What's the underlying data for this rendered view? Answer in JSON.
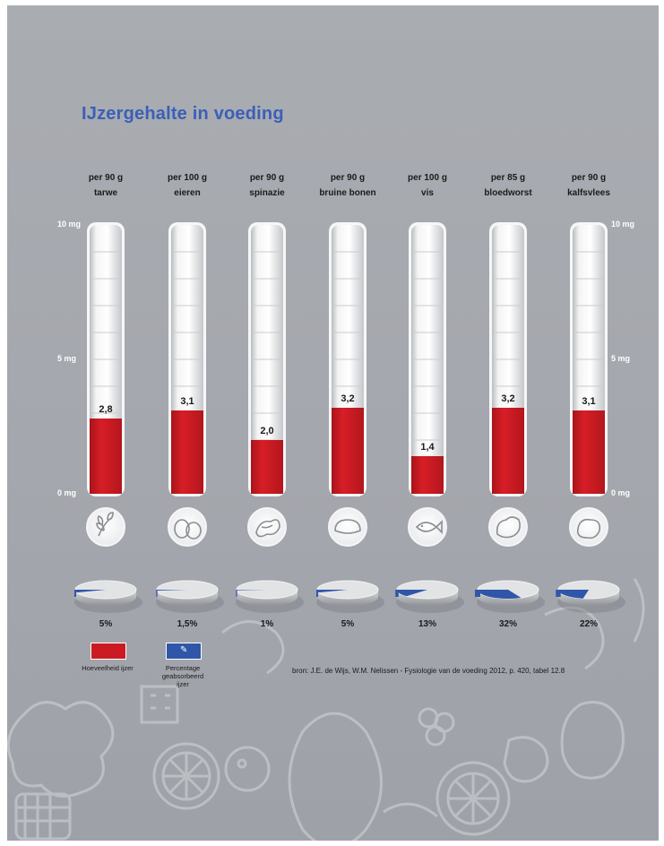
{
  "chart_data": {
    "type": "bar",
    "title": "IJzergehalte in voeding",
    "categories": [
      [
        "per 90 g",
        "tarwe"
      ],
      [
        "per 100 g",
        "eieren"
      ],
      [
        "per 90 g",
        "spinazie"
      ],
      [
        "per 90 g",
        "bruine bonen"
      ],
      [
        "per 100 g",
        "vis"
      ],
      [
        "per 85 g",
        "bloedworst"
      ],
      [
        "per 90 g",
        "kalfsvlees"
      ]
    ],
    "values": [
      2.8,
      3.1,
      2.0,
      3.2,
      1.4,
      3.2,
      3.1
    ],
    "value_labels": [
      "2,8",
      "3,1",
      "2,0",
      "3,2",
      "1,4",
      "3,2",
      "3,1"
    ],
    "ylim": [
      0,
      10
    ],
    "y_tick_labels": [
      "0 mg",
      "5 mg",
      "10 mg"
    ],
    "percentages": [
      5,
      1.5,
      1,
      5,
      13,
      32,
      22
    ],
    "percentage_labels": [
      "5%",
      "1,5%",
      "1%",
      "5%",
      "13%",
      "32%",
      "22%"
    ],
    "icons": [
      "wheat-icon",
      "eggs-icon",
      "spinach-icon",
      "beans-icon",
      "fish-icon",
      "blood-sausage-icon",
      "veal-icon"
    ],
    "series_colors": {
      "iron": "#cc1a22",
      "percentage": "#2f56a8"
    }
  },
  "legend": {
    "items": [
      {
        "label": "Hoeveelheid ijzer",
        "color": "#cc1a22"
      },
      {
        "label": "Percentage geabsorbeerd ijzer",
        "color": "#2f56a8"
      }
    ]
  },
  "source": "bron: J.E. de Wijs, W.M. Nelissen - Fysiologie van de voeding 2012, p. 420, tabel 12.8"
}
